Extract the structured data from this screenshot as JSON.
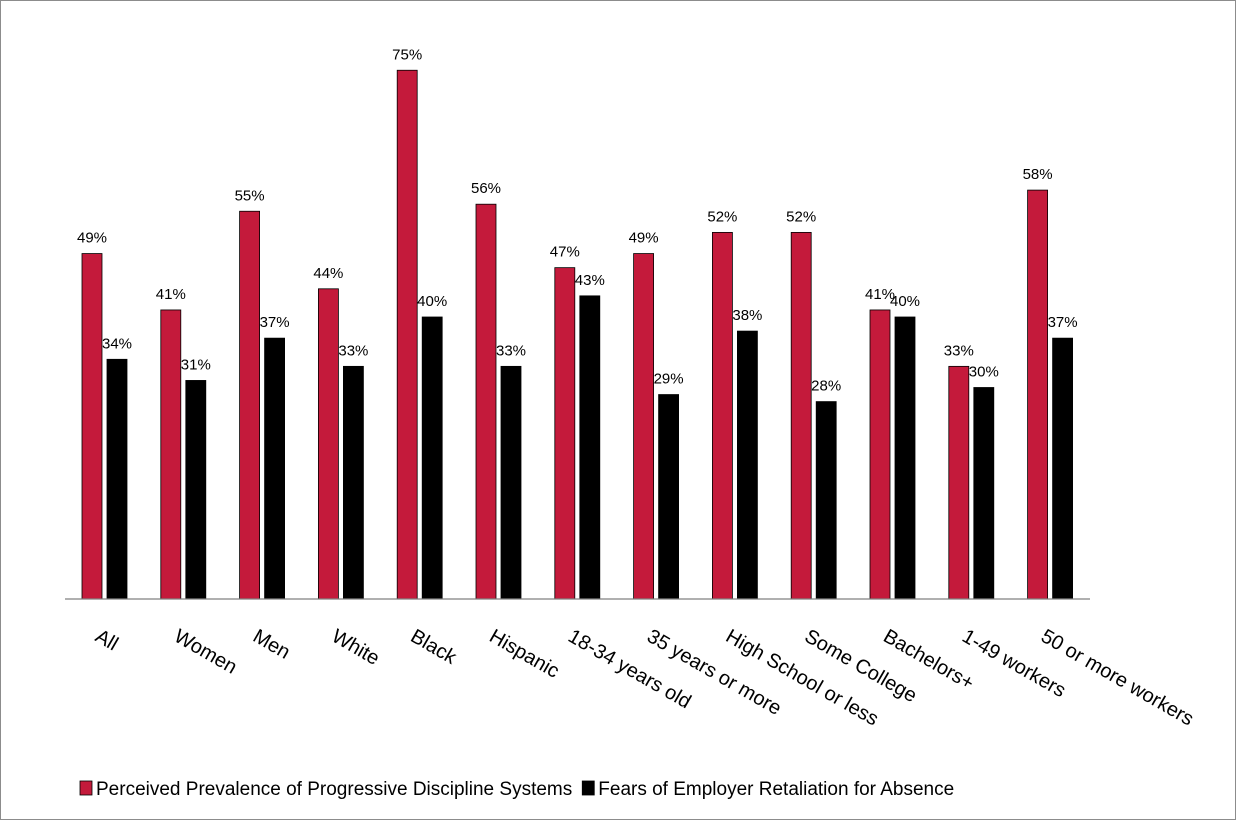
{
  "chart_data": {
    "type": "bar",
    "categories": [
      "All",
      "Women",
      "Men",
      "White",
      "Black",
      "Hispanic",
      "18-34 years old",
      "35 years or more",
      "High School or less",
      "Some College",
      "Bachelors+",
      "1-49 workers",
      "50 or more workers"
    ],
    "series": [
      {
        "name": "Perceived Prevalence of Progressive Discipline Systems",
        "color": "#c41a3b",
        "values": [
          49,
          41,
          55,
          44,
          75,
          56,
          47,
          49,
          52,
          52,
          41,
          33,
          58
        ],
        "labels": [
          "49%",
          "41%",
          "55%",
          "44%",
          "75%",
          "56%",
          "47%",
          "49%",
          "52%",
          "52%",
          "41%",
          "33%",
          "58%"
        ]
      },
      {
        "name": "Fears of Employer Retaliation for Absence",
        "color": "#000000",
        "values": [
          34,
          31,
          37,
          33,
          40,
          33,
          43,
          29,
          38,
          28,
          40,
          30,
          37
        ],
        "labels": [
          "34%",
          "31%",
          "37%",
          "33%",
          "40%",
          "33%",
          "43%",
          "29%",
          "38%",
          "28%",
          "40%",
          "30%",
          "37%"
        ]
      }
    ],
    "ylim": [
      0,
      80
    ],
    "grid": false,
    "legend_position": "bottom",
    "title": "",
    "xlabel": "",
    "ylabel": ""
  }
}
